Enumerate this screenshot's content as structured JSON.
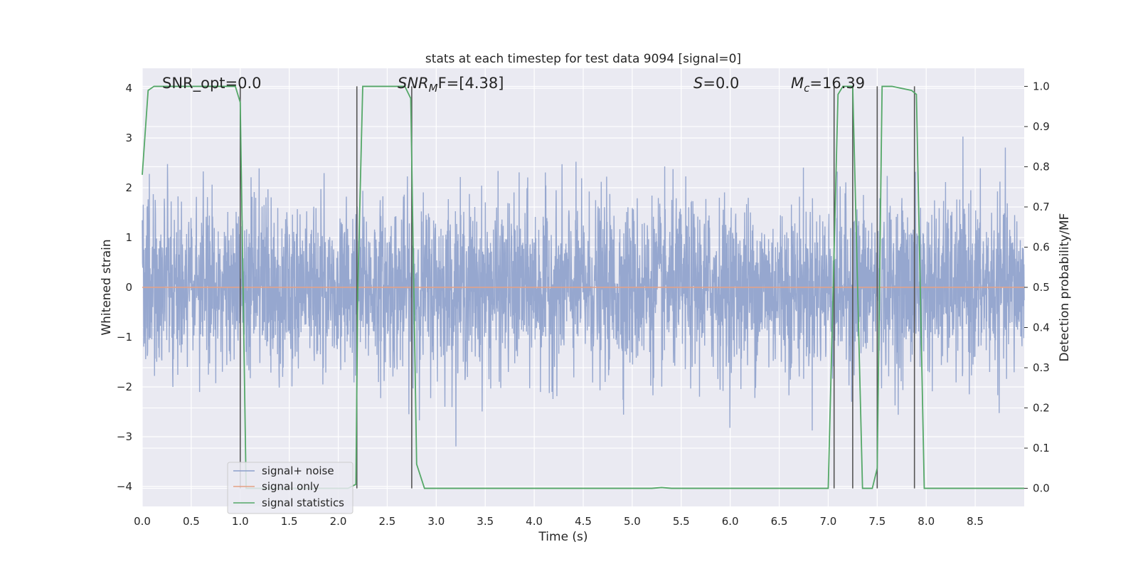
{
  "chart_data": {
    "type": "line",
    "title": "stats at each timestep for test data 9094 [signal=0]",
    "xlabel": "Time (s)",
    "ylabel": "Whitened strain",
    "ylabel_right": "Detection probability/MF",
    "xlim": [
      0.0,
      9.0
    ],
    "ylim_left": [
      -4.4,
      4.4
    ],
    "ylim_right": [
      -0.045,
      1.045
    ],
    "x_ticks": [
      "0.0",
      "0.5",
      "1.0",
      "1.5",
      "2.0",
      "2.5",
      "3.0",
      "3.5",
      "4.0",
      "4.5",
      "5.0",
      "5.5",
      "6.0",
      "6.5",
      "7.0",
      "7.5",
      "8.0",
      "8.5"
    ],
    "y_ticks_left": [
      "4",
      "3",
      "2",
      "1",
      "0",
      "−1",
      "−2",
      "−3",
      "−4"
    ],
    "y_ticks_right": [
      "1.0",
      "0.9",
      "0.8",
      "0.7",
      "0.6",
      "0.5",
      "0.4",
      "0.3",
      "0.2",
      "0.1",
      "0.0"
    ],
    "grid": true,
    "annotations": {
      "snr_opt": "SNR_opt=0.0",
      "snr_mf_main": "SNR",
      "snr_mf_sub": "M",
      "snr_mf_rest": "F=[4.38]",
      "s_main": "S",
      "s_rest": "=0.0",
      "mc_main": "M",
      "mc_sub": "c",
      "mc_rest": "=16.39"
    },
    "legend": {
      "placement": "lower-left",
      "entries": [
        "signal+ noise",
        "signal only",
        "signal statistics"
      ]
    },
    "series": [
      {
        "name": "signal+ noise",
        "axis": "left",
        "noise_std": 0.85,
        "peak_envelope": [
          2.6,
          3.8
        ]
      },
      {
        "name": "signal only",
        "axis": "left",
        "x": [
          0.0,
          9.0
        ],
        "y": [
          0.0,
          0.0
        ]
      },
      {
        "name": "signal statistics",
        "axis": "right",
        "x": [
          0.0,
          0.06,
          0.12,
          0.5,
          0.95,
          1.0,
          1.06,
          1.1,
          1.3,
          1.5,
          2.1,
          2.18,
          2.2,
          2.25,
          2.5,
          2.68,
          2.74,
          2.8,
          2.88,
          3.5,
          4.5,
          5.2,
          5.3,
          5.4,
          6.0,
          7.0,
          7.1,
          7.15,
          7.25,
          7.35,
          7.45,
          7.5,
          7.55,
          7.65,
          7.85,
          7.9,
          7.98,
          8.2,
          9.0
        ],
        "y": [
          0.78,
          0.99,
          1.0,
          1.0,
          1.0,
          0.96,
          0.0,
          0.0,
          0.0,
          0.0,
          0.0,
          0.01,
          0.5,
          1.0,
          1.0,
          1.0,
          0.97,
          0.06,
          0.0,
          0.0,
          0.0,
          0.0,
          0.002,
          0.0,
          0.0,
          0.0,
          0.98,
          1.0,
          1.0,
          0.0,
          0.0,
          0.05,
          1.0,
          1.0,
          0.99,
          0.98,
          0.0,
          0.0,
          0.0
        ]
      }
    ],
    "vertical_lines_x": [
      1.0,
      2.19,
      2.75,
      7.06,
      7.25,
      7.5,
      7.88
    ],
    "vertical_lines_range_right": [
      0.0,
      1.0
    ],
    "colors": {
      "noise": "#8da0cb",
      "signal_only": "#e5a185",
      "stats": "#55a868",
      "vlines": "#555555",
      "plot_bg": "#eaeaf2",
      "grid": "#ffffff"
    }
  }
}
